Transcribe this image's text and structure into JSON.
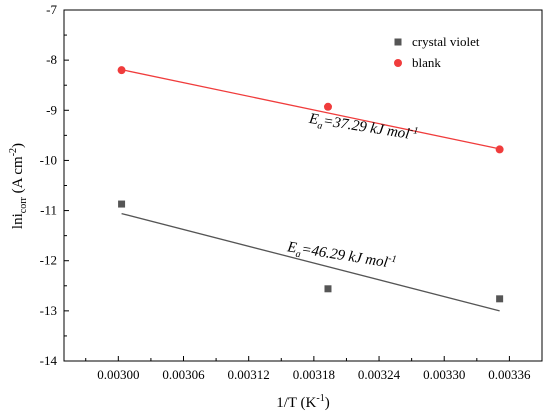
{
  "chart_data": {
    "type": "scatter",
    "xlabel": "1/T (K⁻¹)",
    "ylabel": "lni_corr (A cm^-2)",
    "x_ticks": [
      "0.00300",
      "0.00306",
      "0.00312",
      "0.00318",
      "0.00324",
      "0.00330",
      "0.00336"
    ],
    "y_ticks": [
      "-7",
      "-8",
      "-9",
      "-10",
      "-11",
      "-12",
      "-13",
      "-14"
    ],
    "xlim": [
      0.00295,
      0.00339
    ],
    "ylim": [
      -14,
      -7
    ],
    "legend_position": "top-right",
    "series": [
      {
        "name": "crystal violet",
        "marker": "square",
        "color": "#555555",
        "fit_color": "#555555",
        "x": [
          0.003003,
          0.003193,
          0.003351
        ],
        "y": [
          -10.87,
          -12.56,
          -12.76
        ],
        "fit": {
          "x": [
            0.003003,
            0.003351
          ],
          "y": [
            -11.06,
            -13.0
          ]
        }
      },
      {
        "name": "blank",
        "marker": "circle",
        "color": "#f03c3c",
        "fit_color": "#f03c3c",
        "x": [
          0.003003,
          0.003193,
          0.003351
        ],
        "y": [
          -8.2,
          -8.93,
          -9.78
        ],
        "fit": {
          "x": [
            0.003003,
            0.003351
          ],
          "y": [
            -8.19,
            -9.77
          ]
        }
      }
    ],
    "annotations": [
      {
        "name": "blank-ea",
        "prefix": "E",
        "sub": "a",
        "text": "=37.29 kJ mol",
        "sup": "-1",
        "x": 0.003225,
        "y": -9.42,
        "rotate": 9
      },
      {
        "name": "crystal-violet-ea",
        "prefix": "E",
        "sub": "a",
        "text": "=46.29 kJ mol",
        "sup": "-1",
        "x": 0.003205,
        "y": -11.98,
        "rotate": 9
      }
    ]
  }
}
